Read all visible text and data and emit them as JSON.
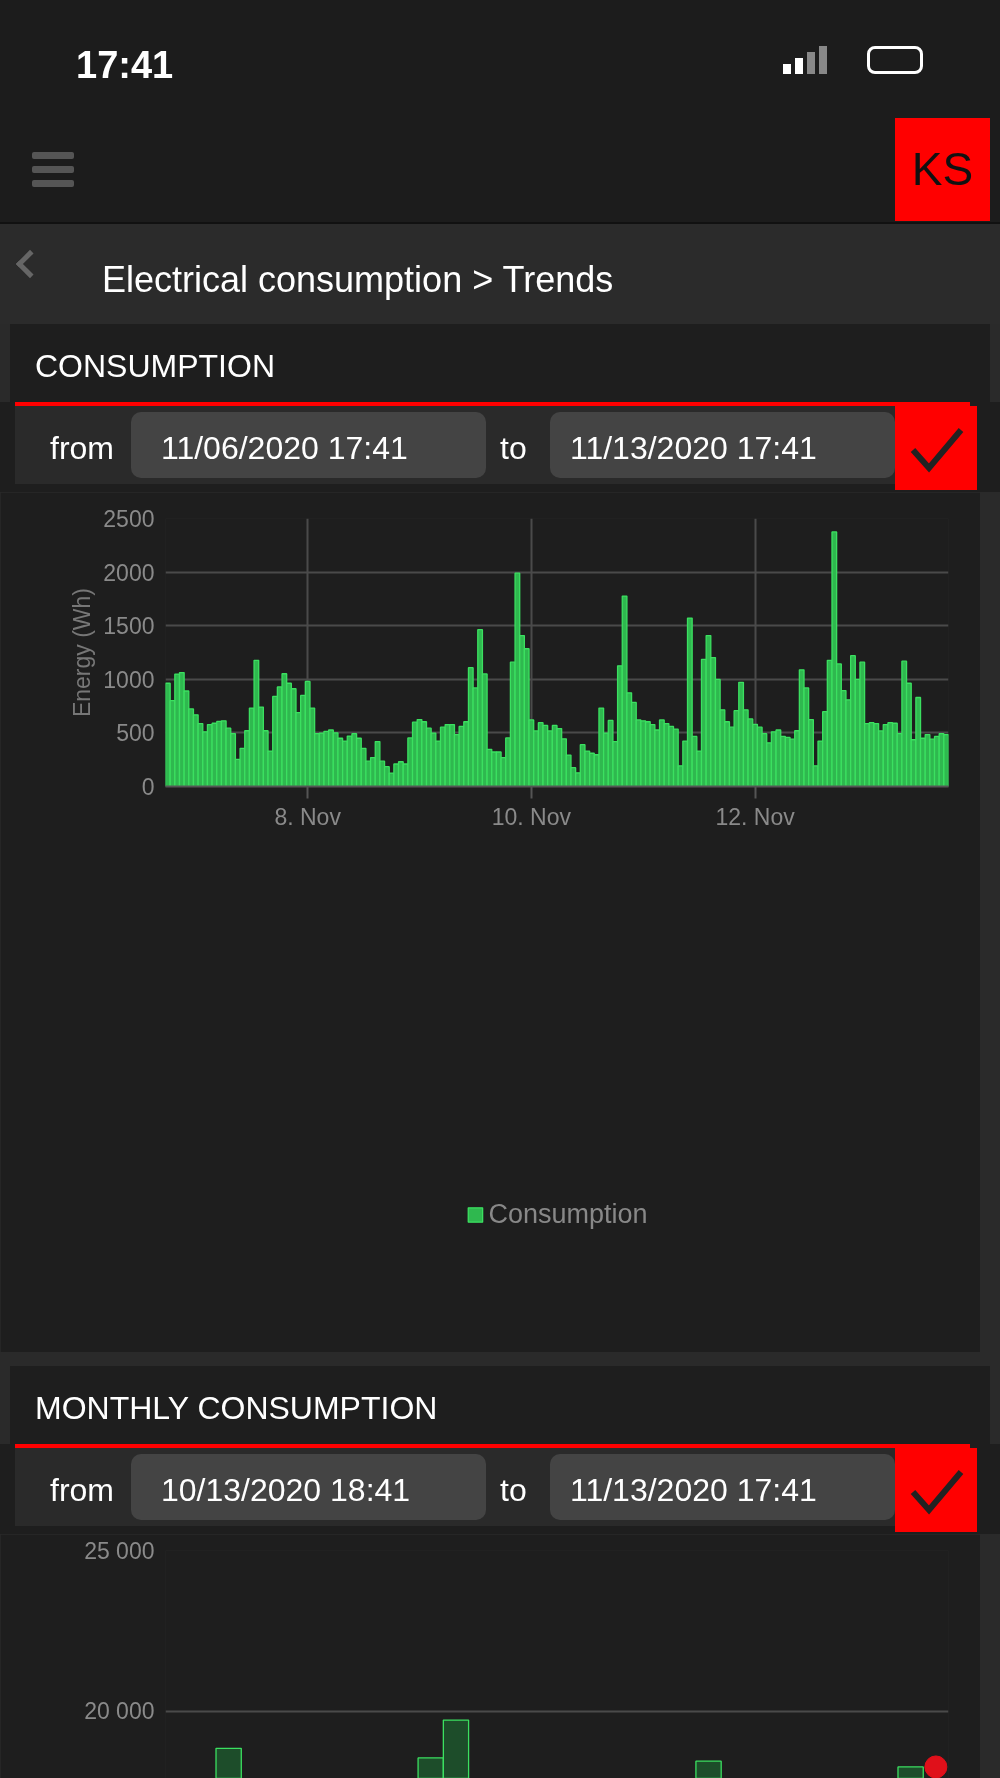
{
  "chart_data": [
    {
      "type": "bar",
      "title": "CONSUMPTION",
      "ylabel": "Energy (Wh)",
      "annotations": [
        "17:41",
        "KS",
        "Electrical consumption > Trends",
        "from",
        "11/06/2020 17:41",
        "to",
        "11/13/2020 17:41"
      ],
      "x": [
        "2020-11-06T18:00",
        "2020-11-06T19:00",
        "2020-11-06T20:00",
        "2020-11-06T21:00",
        "2020-11-06T22:00",
        "2020-11-06T23:00",
        "2020-11-07T00:00",
        "2020-11-07T01:00",
        "2020-11-07T02:00",
        "2020-11-07T03:00",
        "2020-11-07T04:00",
        "2020-11-07T05:00",
        "2020-11-07T06:00",
        "2020-11-07T07:00",
        "2020-11-07T08:00",
        "2020-11-07T09:00",
        "2020-11-07T10:00",
        "2020-11-07T11:00",
        "2020-11-07T12:00",
        "2020-11-07T13:00",
        "2020-11-07T14:00",
        "2020-11-07T15:00",
        "2020-11-07T16:00",
        "2020-11-07T17:00",
        "2020-11-07T18:00",
        "2020-11-07T19:00",
        "2020-11-07T20:00",
        "2020-11-07T21:00",
        "2020-11-07T22:00",
        "2020-11-07T23:00",
        "2020-11-08T00:00",
        "2020-11-08T01:00",
        "2020-11-08T02:00",
        "2020-11-08T03:00",
        "2020-11-08T04:00",
        "2020-11-08T05:00",
        "2020-11-08T06:00",
        "2020-11-08T07:00",
        "2020-11-08T08:00",
        "2020-11-08T09:00",
        "2020-11-08T10:00",
        "2020-11-08T11:00",
        "2020-11-08T12:00",
        "2020-11-08T13:00",
        "2020-11-08T14:00",
        "2020-11-08T15:00",
        "2020-11-08T16:00",
        "2020-11-08T17:00",
        "2020-11-08T18:00",
        "2020-11-08T19:00",
        "2020-11-08T20:00",
        "2020-11-08T21:00",
        "2020-11-08T22:00",
        "2020-11-08T23:00",
        "2020-11-09T00:00",
        "2020-11-09T01:00",
        "2020-11-09T02:00",
        "2020-11-09T03:00",
        "2020-11-09T04:00",
        "2020-11-09T05:00",
        "2020-11-09T06:00",
        "2020-11-09T07:00",
        "2020-11-09T08:00",
        "2020-11-09T09:00",
        "2020-11-09T10:00",
        "2020-11-09T11:00",
        "2020-11-09T12:00",
        "2020-11-09T13:00",
        "2020-11-09T14:00",
        "2020-11-09T15:00",
        "2020-11-09T16:00",
        "2020-11-09T17:00",
        "2020-11-09T18:00",
        "2020-11-09T19:00",
        "2020-11-09T20:00",
        "2020-11-09T21:00",
        "2020-11-09T22:00",
        "2020-11-09T23:00",
        "2020-11-10T00:00",
        "2020-11-10T01:00",
        "2020-11-10T02:00",
        "2020-11-10T03:00",
        "2020-11-10T04:00",
        "2020-11-10T05:00",
        "2020-11-10T06:00",
        "2020-11-10T07:00",
        "2020-11-10T08:00",
        "2020-11-10T09:00",
        "2020-11-10T10:00",
        "2020-11-10T11:00",
        "2020-11-10T12:00",
        "2020-11-10T13:00",
        "2020-11-10T14:00",
        "2020-11-10T15:00",
        "2020-11-10T16:00",
        "2020-11-10T17:00",
        "2020-11-10T18:00",
        "2020-11-10T19:00",
        "2020-11-10T20:00",
        "2020-11-10T21:00",
        "2020-11-10T22:00",
        "2020-11-10T23:00",
        "2020-11-11T00:00",
        "2020-11-11T01:00",
        "2020-11-11T02:00",
        "2020-11-11T03:00",
        "2020-11-11T04:00",
        "2020-11-11T05:00",
        "2020-11-11T06:00",
        "2020-11-11T07:00",
        "2020-11-11T08:00",
        "2020-11-11T09:00",
        "2020-11-11T10:00",
        "2020-11-11T11:00",
        "2020-11-11T12:00",
        "2020-11-11T13:00",
        "2020-11-11T14:00",
        "2020-11-11T15:00",
        "2020-11-11T16:00",
        "2020-11-11T17:00",
        "2020-11-11T18:00",
        "2020-11-11T19:00",
        "2020-11-11T20:00",
        "2020-11-11T21:00",
        "2020-11-11T22:00",
        "2020-11-11T23:00",
        "2020-11-12T00:00",
        "2020-11-12T01:00",
        "2020-11-12T02:00",
        "2020-11-12T03:00",
        "2020-11-12T04:00",
        "2020-11-12T05:00",
        "2020-11-12T06:00",
        "2020-11-12T07:00",
        "2020-11-12T08:00",
        "2020-11-12T09:00",
        "2020-11-12T10:00",
        "2020-11-12T11:00",
        "2020-11-12T12:00",
        "2020-11-12T13:00",
        "2020-11-12T14:00",
        "2020-11-12T15:00",
        "2020-11-12T16:00",
        "2020-11-12T17:00",
        "2020-11-12T18:00",
        "2020-11-12T19:00",
        "2020-11-12T20:00",
        "2020-11-12T21:00",
        "2020-11-12T22:00",
        "2020-11-12T23:00",
        "2020-11-13T00:00",
        "2020-11-13T01:00",
        "2020-11-13T02:00",
        "2020-11-13T03:00",
        "2020-11-13T04:00",
        "2020-11-13T05:00",
        "2020-11-13T06:00",
        "2020-11-13T07:00",
        "2020-11-13T08:00",
        "2020-11-13T09:00",
        "2020-11-13T10:00",
        "2020-11-13T11:00",
        "2020-11-13T12:00",
        "2020-11-13T13:00",
        "2020-11-13T14:00",
        "2020-11-13T15:00",
        "2020-11-13T16:00",
        "2020-11-13T17:00"
      ],
      "series": [
        {
          "name": "Consumption",
          "color": "#2fb84f",
          "values": [
            963,
            801,
            1049,
            1063,
            891,
            724,
            669,
            587,
            510,
            578,
            590,
            607,
            613,
            544,
            493,
            253,
            356,
            520,
            732,
            1177,
            741,
            520,
            330,
            840,
            929,
            1052,
            963,
            912,
            690,
            850,
            980,
            732,
            493,
            498,
            515,
            527,
            501,
            450,
            424,
            470,
            493,
            450,
            356,
            236,
            270,
            419,
            236,
            185,
            125,
            210,
            231,
            210,
            453,
            600,
            624,
            604,
            544,
            498,
            424,
            553,
            578,
            578,
            484,
            560,
            604,
            1108,
            920,
            1463,
            1050,
            347,
            322,
            322,
            270,
            453,
            1160,
            1990,
            1408,
            1285,
            621,
            518,
            595,
            570,
            518,
            570,
            540,
            445,
            293,
            176,
            128,
            390,
            330,
            310,
            296,
            732,
            498,
            616,
            419,
            1126,
            1776,
            874,
            784,
            621,
            613,
            604,
            578,
            527,
            621,
            587,
            560,
            536,
            193,
            424,
            1571,
            467,
            330,
            1186,
            1408,
            1203,
            1000,
            715,
            604,
            553,
            707,
            972,
            715,
            630,
            580,
            553,
            493,
            407,
            510,
            527,
            467,
            459,
            441,
            520,
            1088,
            920,
            624,
            193,
            424,
            698,
            1177,
            2375,
            1143,
            895,
            809,
            1220,
            1000,
            1160,
            587,
            595,
            587,
            518,
            578,
            595,
            590,
            493,
            1169,
            963,
            436,
            830,
            450,
            484,
            441,
            467,
            493,
            484
          ]
        }
      ],
      "xlim": [
        "2020-11-06T17:30",
        "2020-11-13T17:30"
      ],
      "xticks": [
        {
          "value": "2020-11-08",
          "label": "8. Nov"
        },
        {
          "value": "2020-11-10",
          "label": "10. Nov"
        },
        {
          "value": "2020-11-12",
          "label": "12. Nov"
        }
      ],
      "ylim": [
        0,
        2500
      ],
      "yticks": [
        0,
        500,
        1000,
        1500,
        2000,
        2500
      ],
      "grid": true,
      "legend": "bottom"
    },
    {
      "type": "bar",
      "title": "MONTHLY CONSUMPTION",
      "annotations": [
        "from",
        "10/13/2020 18:41",
        "to",
        "11/13/2020 17:41"
      ],
      "categories": [
        null,
        null,
        null,
        null,
        null,
        null,
        null,
        null,
        null,
        null,
        null,
        null,
        null,
        null,
        null,
        null,
        null,
        null,
        null,
        null,
        null,
        null,
        null,
        null,
        null,
        null,
        null,
        null,
        null,
        null,
        null
      ],
      "series": [
        {
          "color": "#1d4d2a",
          "values": [
            null,
            null,
            18840,
            null,
            null,
            null,
            null,
            null,
            null,
            null,
            18540,
            19720,
            null,
            null,
            null,
            null,
            null,
            null,
            null,
            null,
            null,
            18440,
            null,
            null,
            null,
            null,
            null,
            null,
            null,
            18260,
            null
          ]
        },
        {
          "type": "scatter",
          "color": "#e0101a",
          "values": [
            null,
            null,
            null,
            null,
            null,
            null,
            null,
            null,
            null,
            null,
            null,
            null,
            null,
            null,
            null,
            null,
            null,
            null,
            null,
            null,
            null,
            null,
            null,
            null,
            null,
            null,
            null,
            null,
            null,
            null,
            18260
          ]
        }
      ],
      "marker": "circle",
      "ylim": [
        17900,
        25000
      ],
      "yticks": [
        {
          "value": 20000,
          "label": "20 000"
        },
        {
          "value": 25000,
          "label": "25 000"
        }
      ],
      "grid": "y",
      "tick_labels": "y"
    }
  ]
}
